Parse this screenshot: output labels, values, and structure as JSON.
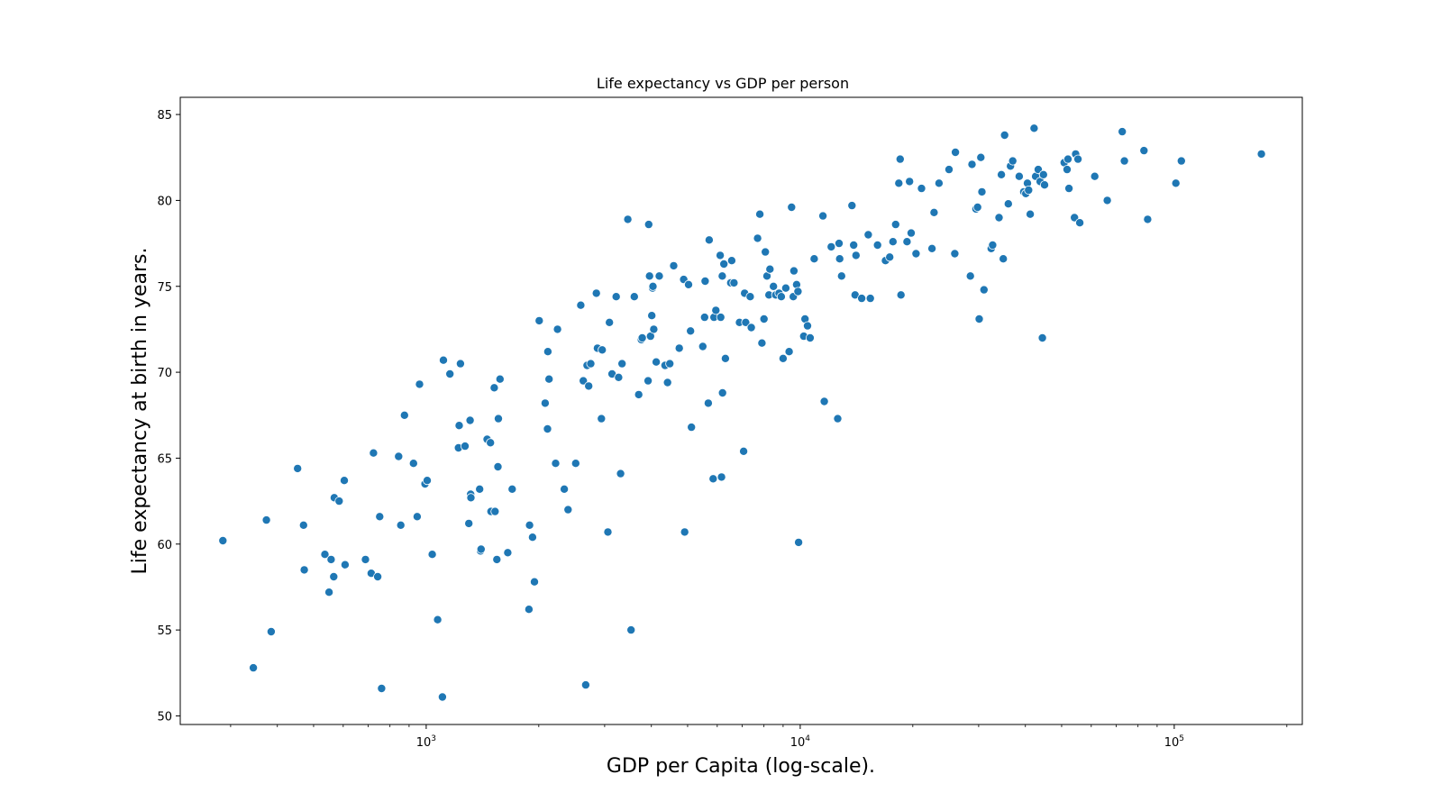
{
  "chart_data": {
    "type": "scatter",
    "title": "Life expectancy vs GDP per person",
    "xlabel": "GDP per Capita (log-scale).",
    "ylabel": "Life expectancy at birth in years.",
    "x_scale": "log",
    "xlim": [
      220,
      220000
    ],
    "ylim": [
      49.5,
      86
    ],
    "x_ticks": [
      {
        "value": 1000,
        "base": "10",
        "exp": "3"
      },
      {
        "value": 10000,
        "base": "10",
        "exp": "4"
      },
      {
        "value": 100000,
        "base": "10",
        "exp": "5"
      }
    ],
    "y_ticks": [
      50,
      55,
      60,
      65,
      70,
      75,
      80,
      85
    ],
    "grid": false,
    "marker_color": "#1f77b4",
    "points": [
      [
        286,
        60.2
      ],
      [
        345,
        52.8
      ],
      [
        374,
        61.4
      ],
      [
        385,
        54.9
      ],
      [
        453,
        64.4
      ],
      [
        470,
        61.1
      ],
      [
        472,
        58.5
      ],
      [
        536,
        59.4
      ],
      [
        550,
        57.2
      ],
      [
        557,
        59.1
      ],
      [
        566,
        58.1
      ],
      [
        568,
        62.7
      ],
      [
        585,
        62.5
      ],
      [
        604,
        63.7
      ],
      [
        607,
        58.8
      ],
      [
        688,
        59.1
      ],
      [
        713,
        58.3
      ],
      [
        723,
        65.3
      ],
      [
        742,
        58.1
      ],
      [
        751,
        61.6
      ],
      [
        760,
        51.6
      ],
      [
        844,
        65.1
      ],
      [
        855,
        61.1
      ],
      [
        875,
        67.5
      ],
      [
        925,
        64.7
      ],
      [
        946,
        61.6
      ],
      [
        960,
        69.3
      ],
      [
        993,
        63.5
      ],
      [
        1006,
        63.7
      ],
      [
        1038,
        59.4
      ],
      [
        1073,
        55.6
      ],
      [
        1105,
        51.1
      ],
      [
        1112,
        70.7
      ],
      [
        1157,
        69.9
      ],
      [
        1220,
        65.6
      ],
      [
        1225,
        66.9
      ],
      [
        1235,
        70.5
      ],
      [
        1270,
        65.7
      ],
      [
        1300,
        61.2
      ],
      [
        1310,
        67.2
      ],
      [
        1315,
        62.9
      ],
      [
        1317,
        62.7
      ],
      [
        1390,
        63.2
      ],
      [
        1397,
        59.6
      ],
      [
        1402,
        59.7
      ],
      [
        1455,
        66.1
      ],
      [
        1485,
        65.9
      ],
      [
        1490,
        61.9
      ],
      [
        1520,
        69.1
      ],
      [
        1528,
        61.9
      ],
      [
        1545,
        59.1
      ],
      [
        1555,
        64.5
      ],
      [
        1560,
        67.3
      ],
      [
        1575,
        69.6
      ],
      [
        1652,
        59.5
      ],
      [
        1698,
        63.2
      ],
      [
        1882,
        56.2
      ],
      [
        1890,
        61.1
      ],
      [
        1925,
        60.4
      ],
      [
        1947,
        57.8
      ],
      [
        2005,
        73.0
      ],
      [
        2080,
        68.2
      ],
      [
        2110,
        66.7
      ],
      [
        2115,
        71.2
      ],
      [
        2130,
        69.6
      ],
      [
        2218,
        64.7
      ],
      [
        2245,
        72.5
      ],
      [
        2340,
        63.2
      ],
      [
        2395,
        62.0
      ],
      [
        2510,
        64.7
      ],
      [
        2590,
        73.9
      ],
      [
        2630,
        69.5
      ],
      [
        2670,
        51.8
      ],
      [
        2692,
        70.4
      ],
      [
        2720,
        69.2
      ],
      [
        2755,
        70.5
      ],
      [
        2850,
        74.6
      ],
      [
        2870,
        71.4
      ],
      [
        2940,
        67.3
      ],
      [
        2955,
        71.3
      ],
      [
        3060,
        60.7
      ],
      [
        3090,
        72.9
      ],
      [
        3140,
        69.9
      ],
      [
        3220,
        74.4
      ],
      [
        3270,
        69.7
      ],
      [
        3310,
        64.1
      ],
      [
        3340,
        70.5
      ],
      [
        3460,
        78.9
      ],
      [
        3530,
        55.0
      ],
      [
        3600,
        74.4
      ],
      [
        3700,
        68.7
      ],
      [
        3760,
        71.9
      ],
      [
        3780,
        72.0
      ],
      [
        3920,
        69.5
      ],
      [
        3935,
        78.6
      ],
      [
        3955,
        75.6
      ],
      [
        3980,
        72.1
      ],
      [
        4010,
        73.3
      ],
      [
        4030,
        74.9
      ],
      [
        4040,
        75.0
      ],
      [
        4060,
        72.5
      ],
      [
        4120,
        70.6
      ],
      [
        4200,
        75.6
      ],
      [
        4350,
        70.4
      ],
      [
        4420,
        69.4
      ],
      [
        4480,
        70.5
      ],
      [
        4590,
        76.2
      ],
      [
        4750,
        71.4
      ],
      [
        4880,
        75.4
      ],
      [
        4910,
        60.7
      ],
      [
        5030,
        75.1
      ],
      [
        5090,
        72.4
      ],
      [
        5120,
        66.8
      ],
      [
        5490,
        71.5
      ],
      [
        5550,
        73.2
      ],
      [
        5570,
        75.3
      ],
      [
        5680,
        68.2
      ],
      [
        5710,
        77.7
      ],
      [
        5850,
        63.8
      ],
      [
        5880,
        73.2
      ],
      [
        5950,
        73.6
      ],
      [
        6110,
        76.8
      ],
      [
        6130,
        73.2
      ],
      [
        6160,
        63.9
      ],
      [
        6190,
        75.6
      ],
      [
        6200,
        68.8
      ],
      [
        6250,
        76.3
      ],
      [
        6310,
        70.8
      ],
      [
        6520,
        75.2
      ],
      [
        6560,
        76.5
      ],
      [
        6650,
        75.2
      ],
      [
        6880,
        72.9
      ],
      [
        7060,
        65.4
      ],
      [
        7100,
        74.6
      ],
      [
        7150,
        72.9
      ],
      [
        7350,
        74.4
      ],
      [
        7400,
        72.6
      ],
      [
        7690,
        77.8
      ],
      [
        7800,
        79.2
      ],
      [
        7900,
        71.7
      ],
      [
        8000,
        73.1
      ],
      [
        8070,
        77.0
      ],
      [
        8150,
        75.6
      ],
      [
        8250,
        74.5
      ],
      [
        8300,
        76.0
      ],
      [
        8480,
        75.0
      ],
      [
        8600,
        74.5
      ],
      [
        8780,
        74.6
      ],
      [
        8900,
        74.4
      ],
      [
        9000,
        70.8
      ],
      [
        9150,
        74.9
      ],
      [
        9340,
        71.2
      ],
      [
        9480,
        79.6
      ],
      [
        9580,
        74.4
      ],
      [
        9620,
        75.9
      ],
      [
        9780,
        75.1
      ],
      [
        9860,
        74.7
      ],
      [
        9900,
        60.1
      ],
      [
        10220,
        72.1
      ],
      [
        10300,
        73.1
      ],
      [
        10460,
        72.7
      ],
      [
        10630,
        72.0
      ],
      [
        10900,
        76.6
      ],
      [
        11500,
        79.1
      ],
      [
        11600,
        68.3
      ],
      [
        12100,
        77.3
      ],
      [
        12600,
        67.3
      ],
      [
        12700,
        77.5
      ],
      [
        12750,
        76.6
      ],
      [
        12900,
        75.6
      ],
      [
        13750,
        79.7
      ],
      [
        13900,
        77.4
      ],
      [
        14020,
        74.5
      ],
      [
        14100,
        76.8
      ],
      [
        14600,
        74.3
      ],
      [
        15200,
        78.0
      ],
      [
        15400,
        74.3
      ],
      [
        16100,
        77.4
      ],
      [
        16900,
        76.5
      ],
      [
        17350,
        76.7
      ],
      [
        17700,
        77.6
      ],
      [
        18000,
        78.6
      ],
      [
        18350,
        81.0
      ],
      [
        18500,
        82.4
      ],
      [
        18600,
        74.5
      ],
      [
        19300,
        77.6
      ],
      [
        19600,
        81.1
      ],
      [
        19800,
        78.1
      ],
      [
        20400,
        76.9
      ],
      [
        21100,
        80.7
      ],
      [
        22500,
        77.2
      ],
      [
        22800,
        79.3
      ],
      [
        23500,
        81.0
      ],
      [
        25000,
        81.8
      ],
      [
        25900,
        76.9
      ],
      [
        26000,
        82.8
      ],
      [
        28500,
        75.6
      ],
      [
        28800,
        82.1
      ],
      [
        29500,
        79.5
      ],
      [
        29800,
        79.6
      ],
      [
        30100,
        73.1
      ],
      [
        30400,
        82.5
      ],
      [
        30600,
        80.5
      ],
      [
        31000,
        74.8
      ],
      [
        32400,
        77.2
      ],
      [
        32700,
        77.4
      ],
      [
        34000,
        79.0
      ],
      [
        34500,
        81.5
      ],
      [
        34900,
        76.6
      ],
      [
        35200,
        83.8
      ],
      [
        36000,
        79.8
      ],
      [
        36500,
        82.0
      ],
      [
        37000,
        82.3
      ],
      [
        38500,
        81.4
      ],
      [
        39600,
        80.5
      ],
      [
        40100,
        80.4
      ],
      [
        40500,
        81.0
      ],
      [
        40800,
        80.6
      ],
      [
        41200,
        79.2
      ],
      [
        42200,
        84.2
      ],
      [
        42600,
        81.4
      ],
      [
        43300,
        81.8
      ],
      [
        43800,
        81.1
      ],
      [
        44400,
        72.0
      ],
      [
        44700,
        81.5
      ],
      [
        45000,
        80.9
      ],
      [
        50800,
        82.2
      ],
      [
        51700,
        81.8
      ],
      [
        52000,
        82.4
      ],
      [
        52300,
        80.7
      ],
      [
        54100,
        79.0
      ],
      [
        54500,
        82.7
      ],
      [
        55300,
        82.4
      ],
      [
        55900,
        78.7
      ],
      [
        61300,
        81.4
      ],
      [
        66200,
        80.0
      ],
      [
        72600,
        84.0
      ],
      [
        73600,
        82.3
      ],
      [
        83000,
        82.9
      ],
      [
        84900,
        78.9
      ],
      [
        101000,
        81.0
      ],
      [
        104500,
        82.3
      ],
      [
        171000,
        82.7
      ]
    ]
  }
}
